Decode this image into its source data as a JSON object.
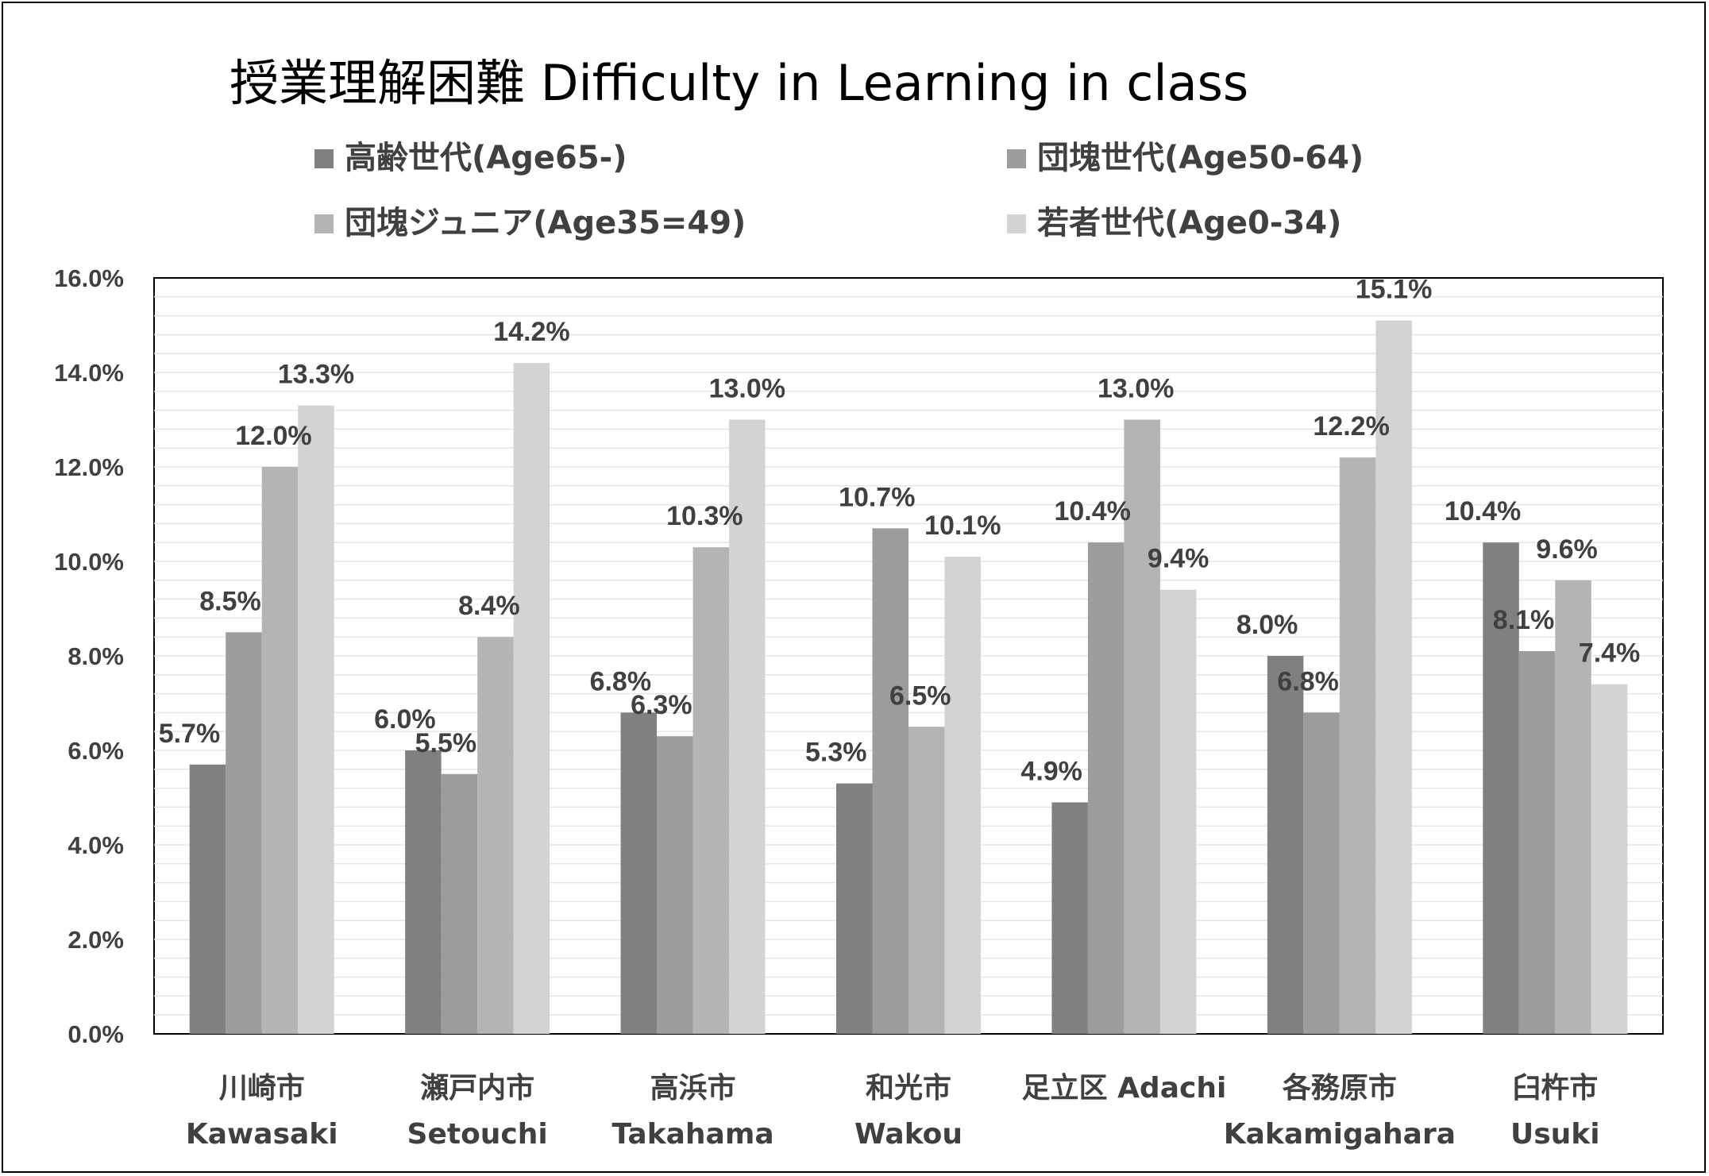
{
  "chart_data": {
    "type": "bar",
    "title": "授業理解困難 Difficulty in Learning in class",
    "categories": [
      [
        "川崎市",
        "Kawasaki"
      ],
      [
        "瀬戸内市",
        "Setouchi"
      ],
      [
        "高浜市",
        "Takahama"
      ],
      [
        "和光市",
        "Wakou"
      ],
      [
        "足立区 Adachi",
        ""
      ],
      [
        "各務原市",
        "Kakamigahara"
      ],
      [
        "臼杵市",
        "Usuki"
      ]
    ],
    "series": [
      {
        "name": "高齢世代(Age65-)",
        "color": "#808080",
        "values": [
          5.7,
          6.0,
          6.8,
          5.3,
          4.9,
          8.0,
          10.4
        ],
        "labels": [
          "5.7%",
          "6.0%",
          "6.8%",
          "5.3%",
          "4.9%",
          "8.0%",
          "10.4%"
        ]
      },
      {
        "name": "団塊世代(Age50-64)",
        "color": "#9c9c9c",
        "values": [
          8.5,
          5.5,
          6.3,
          10.7,
          10.4,
          6.8,
          8.1
        ],
        "labels": [
          "8.5%",
          "5.5%",
          "6.3%",
          "10.7%",
          "10.4%",
          "6.8%",
          "8.1%"
        ]
      },
      {
        "name": "団塊ジュニア(Age35=49)",
        "color": "#b4b4b4",
        "values": [
          12.0,
          8.4,
          10.3,
          6.5,
          13.0,
          12.2,
          9.6
        ],
        "labels": [
          "12.0%",
          "8.4%",
          "10.3%",
          "6.5%",
          "13.0%",
          "12.2%",
          "9.6%"
        ]
      },
      {
        "name": "若者世代(Age0-34)",
        "color": "#d3d3d3",
        "values": [
          13.3,
          14.2,
          13.0,
          10.1,
          9.4,
          15.1,
          7.4
        ],
        "labels": [
          "13.3%",
          "14.2%",
          "13.0%",
          "10.1%",
          "9.4%",
          "15.1%",
          "7.4%"
        ]
      }
    ],
    "ylim": [
      0,
      16
    ],
    "yticks": [
      "0.0%",
      "2.0%",
      "4.0%",
      "6.0%",
      "8.0%",
      "10.0%",
      "12.0%",
      "14.0%",
      "16.0%"
    ],
    "legend_position": "top",
    "grid": true
  }
}
